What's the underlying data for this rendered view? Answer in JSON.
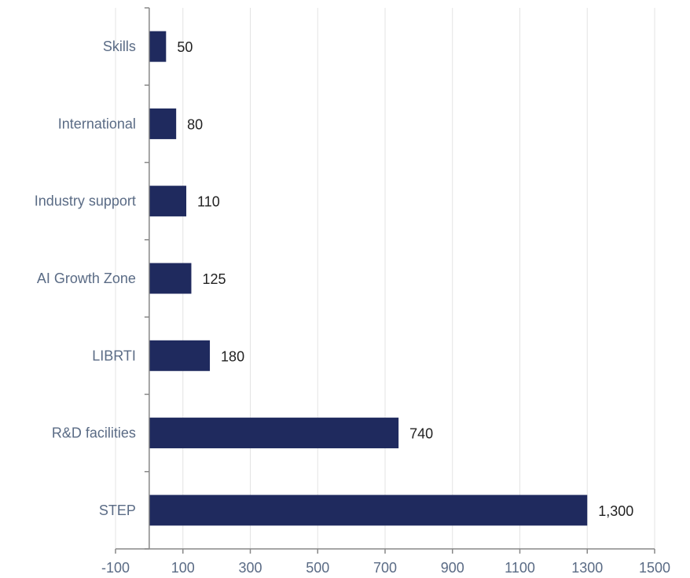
{
  "chart_data": {
    "type": "bar",
    "orientation": "horizontal",
    "categories": [
      "Skills",
      "International",
      "Industry support",
      "AI Growth Zone",
      "LIBRTI",
      "R&D facilities",
      "STEP"
    ],
    "values": [
      50,
      80,
      110,
      125,
      180,
      740,
      1300
    ],
    "value_labels": [
      "50",
      "80",
      "110",
      "125",
      "180",
      "740",
      "1,300"
    ],
    "title": "",
    "xlabel": "",
    "ylabel": "",
    "xlim": [
      -100,
      1500
    ],
    "x_ticks": [
      -100,
      100,
      300,
      500,
      700,
      900,
      1100,
      1300,
      1500
    ],
    "grid": "vertical",
    "legend": "none",
    "bar_color": "#1f2a5e"
  }
}
